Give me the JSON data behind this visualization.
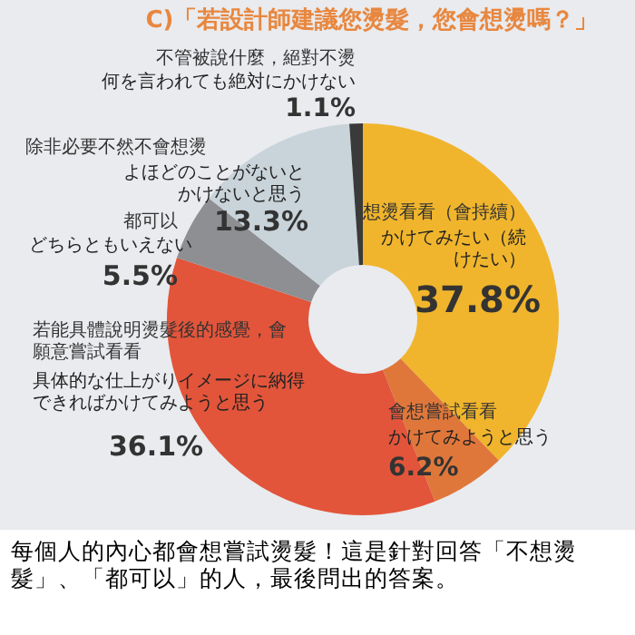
{
  "chart_data": {
    "type": "donut",
    "title": "C)「若設計師建議您燙髮，您會想燙嗎？」",
    "categories": [
      "想燙看看（會持續）",
      "會想嘗試看看",
      "若能具體說明燙髮後的感覺，會願意嘗試看看",
      "都可以",
      "除非必要不然不會想燙",
      "不管被說什麼，絕對不燙"
    ],
    "values": [
      37.8,
      6.2,
      36.1,
      5.5,
      13.3,
      1.1
    ],
    "colors": [
      "#f0b52c",
      "#e0773a",
      "#e2553a",
      "#8d8f93",
      "#c9d3da",
      "#3a3a3a"
    ],
    "value_labels": [
      "37.8%",
      "6.2%",
      "36.1%",
      "5.5%",
      "13.3%",
      "1.1%"
    ],
    "annotations": [
      "かけてみたい（続けたい）",
      "かけてみようと思う",
      "具体的な仕上がりイメージに納得できればかけてみようと思う",
      "どちらともいえない",
      "よほどのことがないとかけないと思う",
      "何を言われても絶対にかけない",
      "每個人的內心都會想嘗試燙髮！這是針對回答「不想燙髮」、「都可以」的人，最後問出的答案。"
    ]
  }
}
